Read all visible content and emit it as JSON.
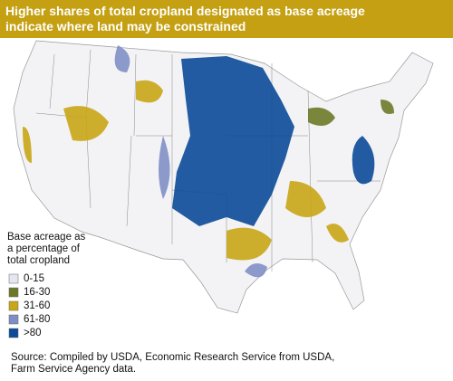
{
  "header": {
    "title_lines": [
      "Higher shares of total cropland designated as base acreage",
      "indicate where land may be constrained"
    ]
  },
  "legend": {
    "title_lines": [
      "Base acreage as",
      "a percentage of",
      "total cropland"
    ],
    "items": [
      {
        "label": "0-15",
        "color": "#e4e6f0"
      },
      {
        "label": "16-30",
        "color": "#6b7a28"
      },
      {
        "label": "31-60",
        "color": "#c8a616"
      },
      {
        "label": "61-80",
        "color": "#7f8fc6"
      },
      {
        ">80": null,
        "label": ">80",
        "color": "#0b4a98"
      }
    ]
  },
  "source_lines": [
    "Source: Compiled by USDA, Economic Research Service from USDA,",
    "Farm Service Agency data."
  ]
}
